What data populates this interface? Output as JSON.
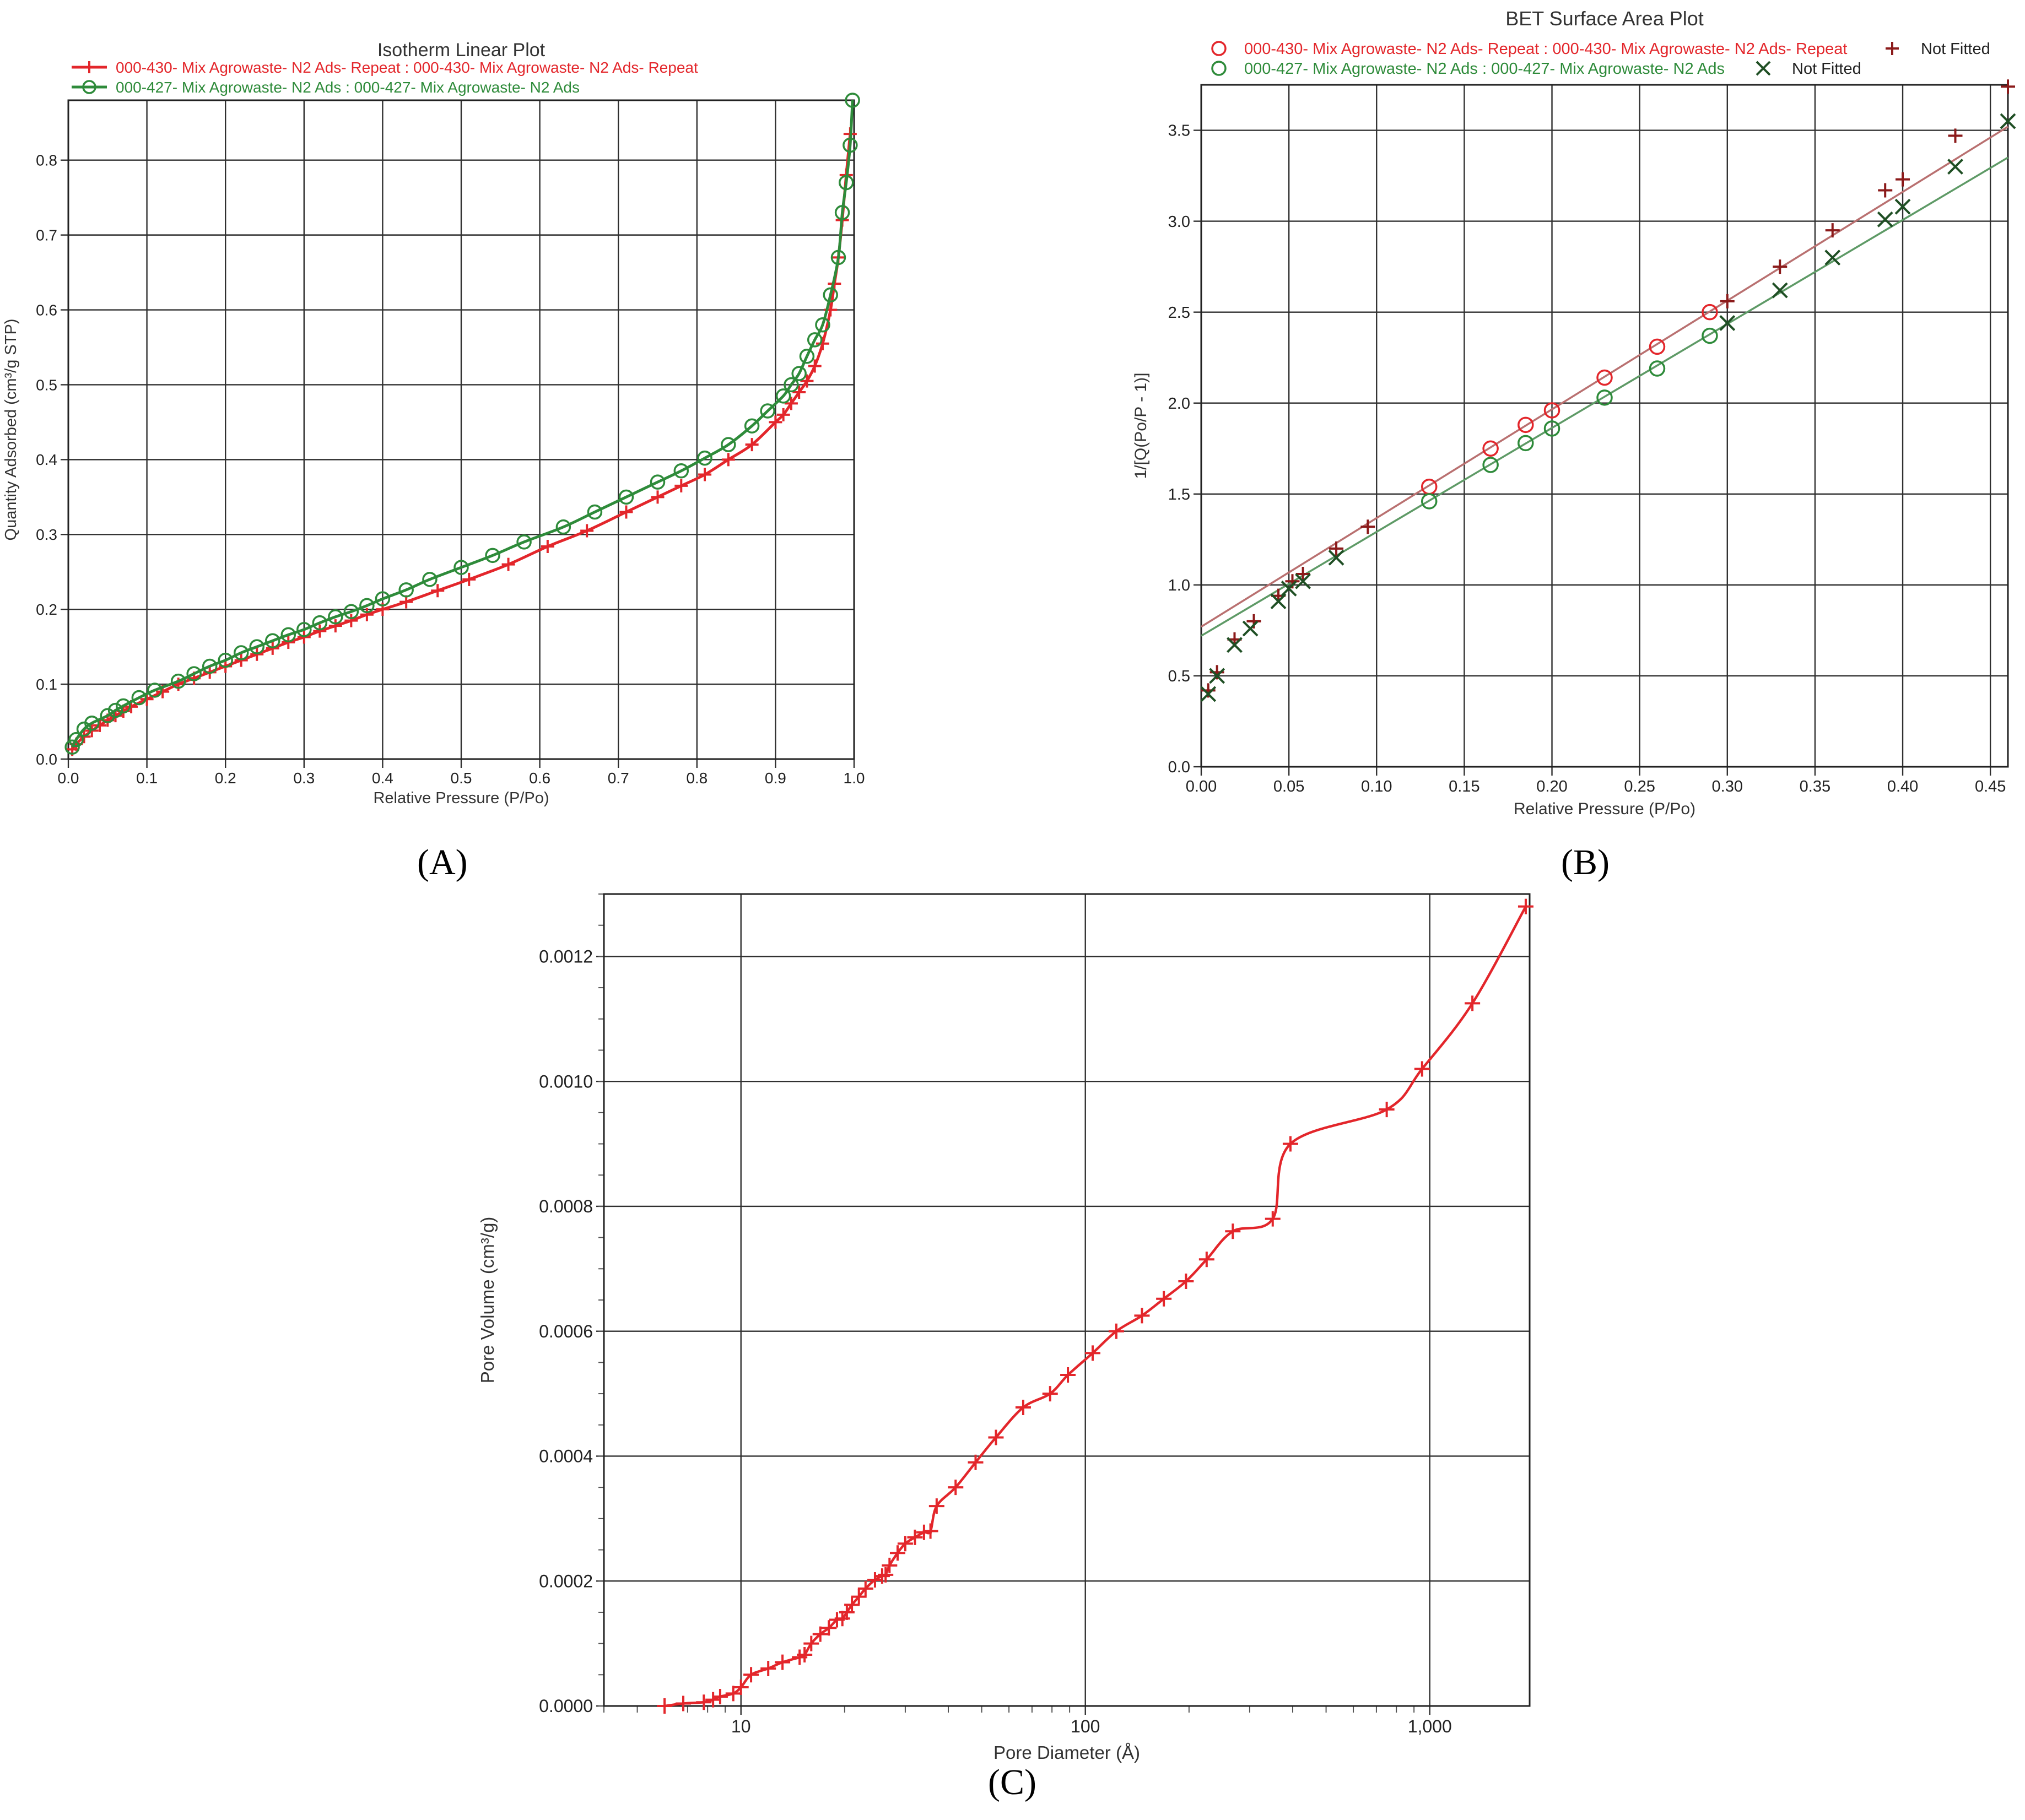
{
  "figure": {
    "panel_labels": [
      "(A)",
      "(B)",
      "(C)"
    ]
  },
  "colors": {
    "red": "#e3262b",
    "green": "#2e8b3a",
    "dark_red": "#8b1a1a",
    "dark_green": "#1f4f24",
    "fit_red": "#b97070",
    "fit_green": "#5e9a66",
    "grid": "#303030"
  },
  "chart_data": [
    {
      "id": "A",
      "type": "line",
      "title": "Isotherm Linear Plot",
      "xlabel": "Relative Pressure (P/Po)",
      "ylabel": "Quantity Adsorbed (cm³/g STP)",
      "xlim": [
        0,
        1.0
      ],
      "ylim": [
        0,
        0.88
      ],
      "xticks": [
        0,
        0.1,
        0.2,
        0.3,
        0.4,
        0.5,
        0.6,
        0.7,
        0.8,
        0.9,
        1.0
      ],
      "xtick_labels": [
        "0.0",
        "0.1",
        "0.2",
        "0.3",
        "0.4",
        "0.5",
        "0.6",
        "0.7",
        "0.8",
        "0.9",
        "1.0"
      ],
      "yticks": [
        0,
        0.1,
        0.2,
        0.3,
        0.4,
        0.5,
        0.6,
        0.7,
        0.8
      ],
      "ytick_labels": [
        "0.0",
        "0.1",
        "0.2",
        "0.3",
        "0.4",
        "0.5",
        "0.6",
        "0.7",
        "0.8"
      ],
      "grid": true,
      "legend_position": "top-left",
      "series": [
        {
          "name": "000-430- Mix Agrowaste- N2 Ads- Repeat : 000-430- Mix Agrowaste- N2 Ads- Repeat",
          "color_key": "red",
          "marker": "plus",
          "x": [
            0.005,
            0.01,
            0.02,
            0.03,
            0.04,
            0.05,
            0.06,
            0.07,
            0.08,
            0.1,
            0.12,
            0.14,
            0.16,
            0.18,
            0.2,
            0.22,
            0.24,
            0.26,
            0.28,
            0.3,
            0.32,
            0.34,
            0.36,
            0.38,
            0.4,
            0.43,
            0.47,
            0.51,
            0.56,
            0.61,
            0.66,
            0.71,
            0.75,
            0.78,
            0.81,
            0.84,
            0.87,
            0.9,
            0.91,
            0.92,
            0.93,
            0.94,
            0.95,
            0.96,
            0.97,
            0.975,
            0.98,
            0.985,
            0.99,
            0.995
          ],
          "y": [
            0.013,
            0.02,
            0.03,
            0.038,
            0.045,
            0.052,
            0.058,
            0.064,
            0.07,
            0.08,
            0.09,
            0.1,
            0.108,
            0.116,
            0.124,
            0.132,
            0.14,
            0.148,
            0.156,
            0.163,
            0.171,
            0.178,
            0.185,
            0.193,
            0.2,
            0.21,
            0.225,
            0.24,
            0.26,
            0.284,
            0.305,
            0.33,
            0.35,
            0.365,
            0.38,
            0.4,
            0.42,
            0.45,
            0.46,
            0.475,
            0.49,
            0.505,
            0.525,
            0.555,
            0.6,
            0.635,
            0.67,
            0.72,
            0.78,
            0.835
          ]
        },
        {
          "name": "000-427- Mix Agrowaste- N2 Ads : 000-427- Mix Agrowaste- N2 Ads",
          "color_key": "green",
          "marker": "circle",
          "x": [
            0.005,
            0.01,
            0.02,
            0.03,
            0.05,
            0.06,
            0.07,
            0.09,
            0.11,
            0.14,
            0.16,
            0.18,
            0.2,
            0.22,
            0.24,
            0.26,
            0.28,
            0.3,
            0.32,
            0.34,
            0.36,
            0.38,
            0.4,
            0.43,
            0.46,
            0.5,
            0.54,
            0.58,
            0.63,
            0.67,
            0.71,
            0.75,
            0.78,
            0.81,
            0.84,
            0.87,
            0.89,
            0.91,
            0.92,
            0.93,
            0.94,
            0.95,
            0.96,
            0.97,
            0.98,
            0.985,
            0.99,
            0.995,
            0.998
          ],
          "y": [
            0.016,
            0.026,
            0.04,
            0.048,
            0.058,
            0.065,
            0.071,
            0.082,
            0.092,
            0.104,
            0.114,
            0.124,
            0.132,
            0.142,
            0.15,
            0.158,
            0.166,
            0.173,
            0.182,
            0.19,
            0.197,
            0.205,
            0.214,
            0.226,
            0.24,
            0.256,
            0.272,
            0.29,
            0.31,
            0.33,
            0.35,
            0.37,
            0.385,
            0.402,
            0.42,
            0.445,
            0.465,
            0.485,
            0.5,
            0.515,
            0.538,
            0.56,
            0.58,
            0.62,
            0.67,
            0.73,
            0.77,
            0.82,
            0.88
          ]
        }
      ]
    },
    {
      "id": "B",
      "type": "scatter",
      "title": "BET Surface Area Plot",
      "xlabel": "Relative Pressure (P/Po)",
      "ylabel": "1/[Q(Po/P - 1)]",
      "xlim": [
        0,
        0.46
      ],
      "ylim": [
        0,
        3.75
      ],
      "xticks": [
        0,
        0.05,
        0.1,
        0.15,
        0.2,
        0.25,
        0.3,
        0.35,
        0.4,
        0.45
      ],
      "xtick_labels": [
        "0.00",
        "0.05",
        "0.10",
        "0.15",
        "0.20",
        "0.25",
        "0.30",
        "0.35",
        "0.40",
        "0.45"
      ],
      "yticks": [
        0,
        0.5,
        1.0,
        1.5,
        2.0,
        2.5,
        3.0,
        3.5
      ],
      "ytick_labels": [
        "0.0",
        "0.5",
        "1.0",
        "1.5",
        "2.0",
        "2.5",
        "3.0",
        "3.5"
      ],
      "grid": true,
      "legend_position": "top",
      "legend_not_fitted": "Not Fitted",
      "series": [
        {
          "name": "000-430- Mix Agrowaste- N2 Ads- Repeat : 000-430- Mix Agrowaste- N2 Ads- Repeat",
          "color_key": "red",
          "marker": "circle",
          "x": [
            0.13,
            0.165,
            0.185,
            0.2,
            0.23,
            0.26,
            0.29
          ],
          "y": [
            1.54,
            1.75,
            1.88,
            1.96,
            2.14,
            2.31,
            2.5
          ]
        },
        {
          "name": "Not Fitted",
          "color_key": "dark_red",
          "marker": "plus",
          "x": [
            0.004,
            0.009,
            0.019,
            0.03,
            0.044,
            0.052,
            0.058,
            0.077,
            0.095,
            0.3,
            0.33,
            0.36,
            0.39,
            0.4,
            0.43,
            0.46
          ],
          "y": [
            0.42,
            0.52,
            0.7,
            0.8,
            0.94,
            1.02,
            1.06,
            1.2,
            1.32,
            2.56,
            2.75,
            2.95,
            3.17,
            3.23,
            3.47,
            3.74
          ]
        },
        {
          "name": "000-427- Mix Agrowaste- N2 Ads : 000-427- Mix Agrowaste- N2 Ads",
          "color_key": "green",
          "marker": "circle",
          "x": [
            0.13,
            0.165,
            0.185,
            0.2,
            0.23,
            0.26,
            0.29
          ],
          "y": [
            1.46,
            1.66,
            1.78,
            1.86,
            2.03,
            2.19,
            2.37
          ]
        },
        {
          "name": "Not Fitted",
          "color_key": "dark_green",
          "marker": "cross",
          "x": [
            0.004,
            0.009,
            0.019,
            0.028,
            0.044,
            0.05,
            0.058,
            0.077,
            0.3,
            0.33,
            0.36,
            0.39,
            0.4,
            0.43,
            0.46
          ],
          "y": [
            0.4,
            0.5,
            0.67,
            0.76,
            0.91,
            0.98,
            1.02,
            1.15,
            2.44,
            2.62,
            2.8,
            3.01,
            3.08,
            3.3,
            3.55
          ]
        }
      ],
      "fit_lines": [
        {
          "color_key": "fit_red",
          "x": [
            0,
            0.46
          ],
          "y": [
            0.77,
            3.52
          ]
        },
        {
          "color_key": "fit_green",
          "x": [
            0,
            0.46
          ],
          "y": [
            0.72,
            3.35
          ]
        }
      ]
    },
    {
      "id": "C",
      "type": "line",
      "title": "",
      "xlabel": "Pore Diameter (Å)",
      "ylabel": "Pore Volume (cm³/g)",
      "xscale": "log",
      "xlim": [
        4,
        1950
      ],
      "ylim": [
        0,
        0.0013
      ],
      "xticks": [
        10,
        100,
        1000
      ],
      "xtick_labels": [
        "10",
        "100",
        "1,000"
      ],
      "yticks": [
        0,
        0.0002,
        0.0004,
        0.0006,
        0.0008,
        0.001,
        0.0012
      ],
      "ytick_labels": [
        "0.0000",
        "0.0002",
        "0.0004",
        "0.0006",
        "0.0008",
        "0.0010",
        "0.0012"
      ],
      "grid": true,
      "series": [
        {
          "color_key": "red",
          "marker": "plus",
          "x": [
            6,
            6.8,
            7.8,
            8.3,
            8.7,
            9.5,
            10,
            10.7,
            12,
            13.2,
            14.8,
            15.3,
            16,
            17,
            18,
            19,
            19.7,
            20.3,
            21,
            22,
            23,
            24.5,
            25.7,
            26.3,
            27,
            28.5,
            30,
            32,
            34,
            35.5,
            37,
            42,
            48,
            55,
            66,
            79,
            89,
            105,
            123,
            146,
            169,
            196,
            225,
            268,
            350,
            394,
            750,
            950,
            1330,
            1900
          ],
          "y": [
            0,
            4e-06,
            6e-06,
            1e-05,
            1.5e-05,
            2e-05,
            3e-05,
            5e-05,
            6e-05,
            7e-05,
            7.8e-05,
            8.2e-05,
            0.0001,
            0.000115,
            0.000125,
            0.000138,
            0.00014,
            0.00015,
            0.000162,
            0.000175,
            0.000188,
            0.000202,
            0.000208,
            0.00021,
            0.000225,
            0.000245,
            0.00026,
            0.00027,
            0.000278,
            0.00028,
            0.00032,
            0.00035,
            0.00039,
            0.00043,
            0.000478,
            0.0005,
            0.00053,
            0.000565,
            0.0006,
            0.000625,
            0.000652,
            0.00068,
            0.000715,
            0.00076,
            0.00078,
            0.0009,
            0.000955,
            0.00102,
            0.001125,
            0.00128
          ]
        }
      ]
    }
  ]
}
